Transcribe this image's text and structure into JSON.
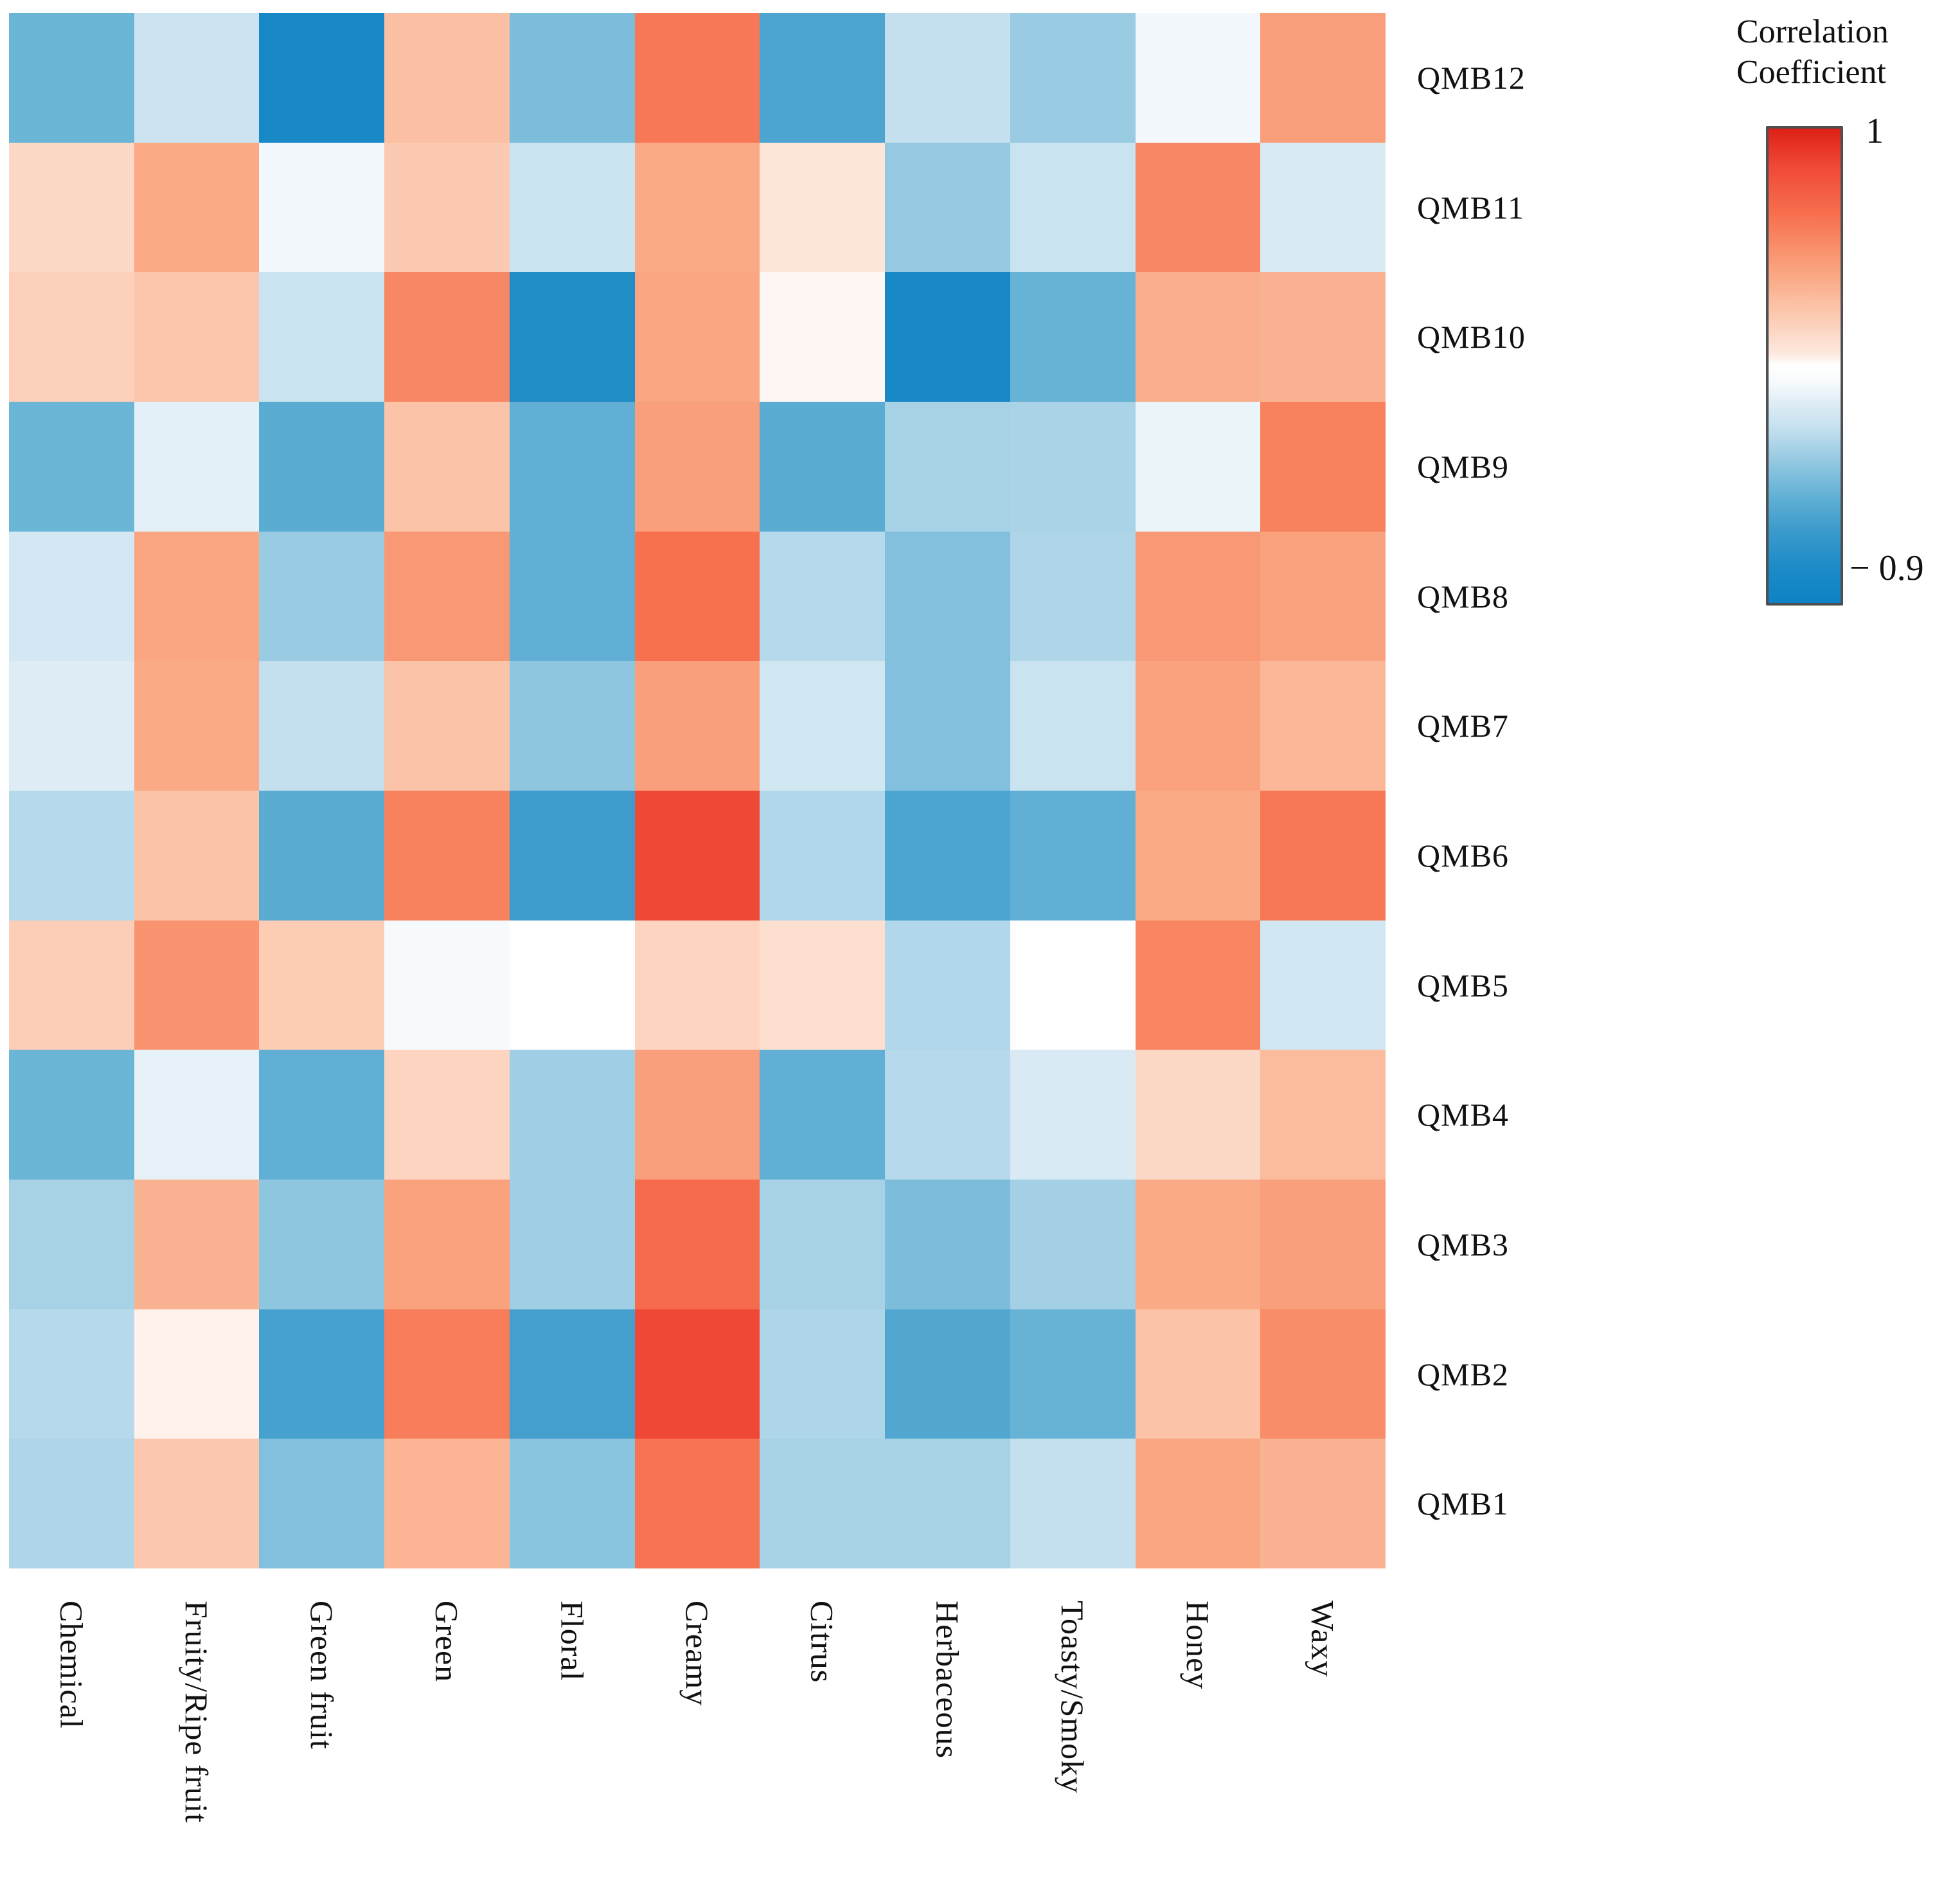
{
  "chart_data": {
    "type": "heatmap",
    "rows": [
      "QMB12",
      "QMB11",
      "QMB10",
      "QMB9",
      "QMB8",
      "QMB7",
      "QMB6",
      "QMB5",
      "QMB4",
      "QMB3",
      "QMB2",
      "QMB1"
    ],
    "columns": [
      "Chemical",
      "Fruity/Ripe fruit",
      "Green fruit",
      "Green",
      "Floral",
      "Creamy",
      "Citrus",
      "Herbaceous",
      "Toasty/Smoky",
      "Honey",
      "Waxy"
    ],
    "values": [
      [
        -0.45,
        -0.17,
        -0.8,
        0.3,
        -0.4,
        0.62,
        -0.55,
        -0.2,
        -0.32,
        -0.03,
        0.45
      ],
      [
        0.18,
        0.4,
        -0.03,
        0.25,
        -0.18,
        0.4,
        0.12,
        -0.33,
        -0.18,
        0.55,
        -0.12
      ],
      [
        0.22,
        0.27,
        -0.18,
        0.55,
        -0.73,
        0.42,
        0.07,
        -0.8,
        -0.46,
        0.38,
        0.36
      ],
      [
        -0.45,
        -0.08,
        -0.5,
        0.28,
        -0.48,
        0.45,
        -0.5,
        -0.28,
        -0.27,
        -0.06,
        0.58
      ],
      [
        -0.14,
        0.42,
        -0.32,
        0.48,
        -0.48,
        0.65,
        -0.24,
        -0.38,
        -0.26,
        0.48,
        0.44
      ],
      [
        -0.1,
        0.4,
        -0.2,
        0.28,
        -0.35,
        0.45,
        -0.15,
        -0.38,
        -0.18,
        0.44,
        0.34
      ],
      [
        -0.24,
        0.28,
        -0.5,
        0.58,
        -0.6,
        0.85,
        -0.25,
        -0.55,
        -0.48,
        0.4,
        0.62
      ],
      [
        0.23,
        0.5,
        0.24,
        -0.02,
        0.05,
        0.2,
        0.15,
        -0.25,
        0.04,
        0.56,
        -0.15
      ],
      [
        -0.45,
        -0.07,
        -0.48,
        0.2,
        -0.3,
        0.45,
        -0.48,
        -0.24,
        -0.12,
        0.18,
        0.32
      ],
      [
        -0.28,
        0.36,
        -0.35,
        0.44,
        -0.3,
        0.68,
        -0.28,
        -0.4,
        -0.29,
        0.4,
        0.45
      ],
      [
        -0.24,
        0.08,
        -0.57,
        0.6,
        -0.58,
        0.85,
        -0.26,
        -0.53,
        -0.46,
        0.28,
        0.53
      ],
      [
        -0.26,
        0.26,
        -0.38,
        0.35,
        -0.36,
        0.64,
        -0.28,
        -0.28,
        -0.2,
        0.42,
        0.36
      ]
    ],
    "value_domain": [
      -0.9,
      1
    ],
    "colorscale": [
      {
        "v": -0.9,
        "c": "#0d83c5"
      },
      {
        "v": -0.75,
        "c": "#1d8bc6"
      },
      {
        "v": -0.6,
        "c": "#3e9ccc"
      },
      {
        "v": -0.5,
        "c": "#5aacd3"
      },
      {
        "v": -0.4,
        "c": "#7bbddb"
      },
      {
        "v": -0.3,
        "c": "#a0cee4"
      },
      {
        "v": -0.2,
        "c": "#c4e0ef"
      },
      {
        "v": -0.1,
        "c": "#deedf5"
      },
      {
        "v": -0.02,
        "c": "#f6fafd"
      },
      {
        "v": 0.05,
        "c": "#ffffff"
      },
      {
        "v": 0.1,
        "c": "#fde9de"
      },
      {
        "v": 0.2,
        "c": "#fcd4c0"
      },
      {
        "v": 0.3,
        "c": "#fbc0a3"
      },
      {
        "v": 0.4,
        "c": "#faaa87"
      },
      {
        "v": 0.5,
        "c": "#f99470"
      },
      {
        "v": 0.65,
        "c": "#f7714f"
      },
      {
        "v": 0.85,
        "c": "#f04836"
      },
      {
        "v": 1.0,
        "c": "#dd2016"
      }
    ],
    "legend": {
      "title_line1": "Correlation",
      "title_line2": "Coefficient",
      "max_label": "1",
      "min_label": "− 0.9"
    },
    "layout": {
      "grid": false,
      "legend_position": "right",
      "x_tick_rotation": 90
    }
  }
}
